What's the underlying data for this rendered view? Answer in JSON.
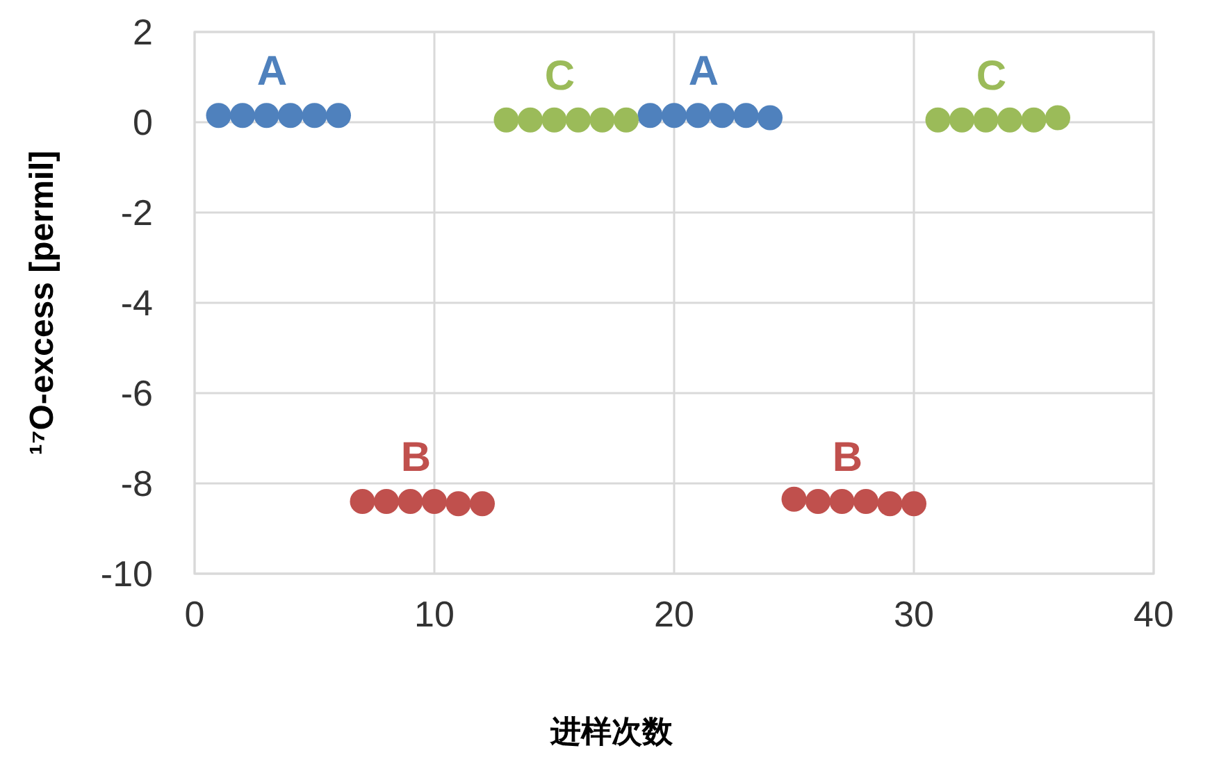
{
  "chart_data": {
    "type": "scatter",
    "xlabel": "进样次数",
    "ylabel": "¹⁷O-excess [permil]",
    "xlim": [
      0,
      40
    ],
    "xticks": [
      0,
      10,
      20,
      30,
      40
    ],
    "ylim": [
      -10,
      2
    ],
    "yticks": [
      -10,
      -8,
      -6,
      -4,
      -2,
      0,
      2
    ],
    "grid": true,
    "marker": "circle",
    "series": [
      {
        "name": "A",
        "color": "#4f81bd",
        "x": [
          1,
          2,
          3,
          4,
          5,
          6,
          19,
          20,
          21,
          22,
          23,
          24
        ],
        "values": [
          0.15,
          0.15,
          0.15,
          0.15,
          0.15,
          0.15,
          0.15,
          0.15,
          0.15,
          0.15,
          0.15,
          0.1
        ]
      },
      {
        "name": "B",
        "color": "#c0504d",
        "x": [
          7,
          8,
          9,
          10,
          11,
          12,
          25,
          26,
          27,
          28,
          29,
          30
        ],
        "values": [
          -8.4,
          -8.4,
          -8.4,
          -8.4,
          -8.45,
          -8.45,
          -8.35,
          -8.4,
          -8.4,
          -8.4,
          -8.45,
          -8.45
        ]
      },
      {
        "name": "C",
        "color": "#9bbb59",
        "x": [
          13,
          14,
          15,
          16,
          17,
          18,
          31,
          32,
          33,
          34,
          35,
          36
        ],
        "values": [
          0.05,
          0.05,
          0.05,
          0.05,
          0.05,
          0.05,
          0.05,
          0.05,
          0.05,
          0.05,
          0.05,
          0.1
        ]
      }
    ]
  }
}
